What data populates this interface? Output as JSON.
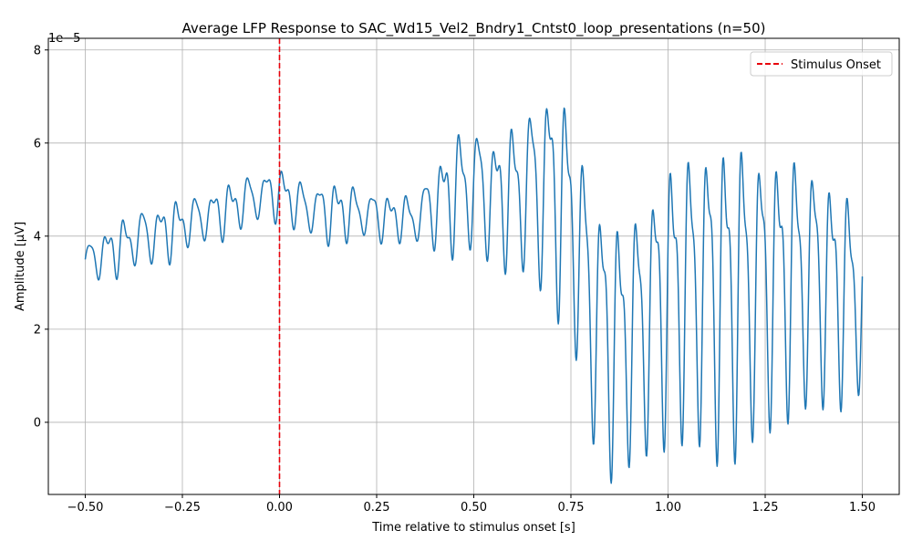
{
  "chart_data": {
    "type": "line",
    "title": "Average LFP Response to SAC_Wd15_Vel2_Bndry1_Cntst0_loop_presentations (n=50)",
    "xlabel": "Time relative to stimulus onset [s]",
    "ylabel": "Amplitude [µV]",
    "y_offset_label": "1e−5",
    "xlim": [
      -0.595,
      1.595
    ],
    "ylim": [
      -1.55,
      8.25
    ],
    "y_scale": 1e-05,
    "grid": true,
    "legend_position": "top-right",
    "x_ticks": [
      -0.5,
      -0.25,
      0.0,
      0.25,
      0.5,
      0.75,
      1.0,
      1.25,
      1.5
    ],
    "x_tick_labels": [
      "−0.50",
      "−0.25",
      "0.00",
      "0.25",
      "0.50",
      "0.75",
      "1.00",
      "1.25",
      "1.50"
    ],
    "y_ticks": [
      0,
      2,
      4,
      6,
      8
    ],
    "y_tick_labels": [
      "0",
      "2",
      "4",
      "6",
      "8"
    ],
    "vlines": [
      {
        "name": "Stimulus Onset",
        "x": 0.0,
        "color": "#e8000b",
        "style": "dashed"
      }
    ],
    "series": [
      {
        "color": "#1f77b4",
        "envelope": {
          "x": [
            -0.5,
            -0.45,
            -0.4,
            -0.35,
            -0.3,
            -0.25,
            -0.2,
            -0.15,
            -0.1,
            -0.05,
            0.0,
            0.05,
            0.1,
            0.15,
            0.2,
            0.25,
            0.3,
            0.35,
            0.4,
            0.45,
            0.5,
            0.55,
            0.6,
            0.65,
            0.7,
            0.75,
            0.8,
            0.85,
            0.9,
            0.95,
            1.0,
            1.05,
            1.1,
            1.15,
            1.2,
            1.25,
            1.3,
            1.35,
            1.4,
            1.45,
            1.5
          ],
          "center": [
            3.5,
            3.7,
            3.9,
            4.0,
            4.0,
            4.2,
            4.4,
            4.6,
            4.8,
            4.9,
            4.9,
            4.6,
            4.5,
            4.6,
            4.6,
            4.5,
            4.4,
            4.3,
            4.6,
            5.0,
            5.2,
            5.0,
            5.0,
            5.0,
            5.0,
            4.5,
            2.7,
            2.0,
            2.0,
            2.3,
            2.8,
            2.9,
            3.0,
            3.1,
            3.1,
            3.1,
            3.1,
            3.1,
            3.1,
            3.0,
            2.9
          ],
          "amplitude": [
            0.4,
            0.6,
            0.6,
            0.7,
            0.7,
            0.6,
            0.6,
            0.6,
            0.6,
            0.6,
            0.6,
            0.6,
            0.7,
            0.7,
            0.6,
            0.6,
            0.5,
            0.6,
            1.0,
            1.4,
            1.6,
            1.5,
            1.7,
            2.2,
            2.7,
            2.7,
            3.2,
            3.1,
            3.0,
            3.3,
            3.4,
            3.6,
            3.9,
            3.9,
            3.9,
            3.4,
            3.2,
            3.2,
            2.9,
            2.6,
            2.4
          ]
        }
      }
    ]
  }
}
